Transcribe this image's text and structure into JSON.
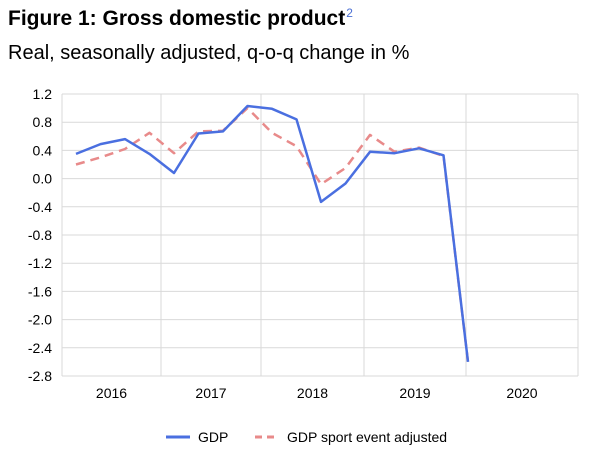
{
  "figure": {
    "title": "Figure 1: Gross domestic product",
    "footnote": "2",
    "subtitle": "Real, seasonally adjusted, q-o-q change in %"
  },
  "chart_data": {
    "type": "line",
    "title": "Figure 1: Gross domestic product",
    "subtitle": "Real, seasonally adjusted, q-o-q change in %",
    "xlabel": "",
    "ylabel": "",
    "ylim": [
      -2.8,
      1.2
    ],
    "yticks": [
      1.2,
      0.8,
      0.4,
      0.0,
      -0.4,
      -0.8,
      -1.2,
      -1.6,
      -2.0,
      -2.4,
      -2.8
    ],
    "ytick_labels": [
      "1.2",
      "0.8",
      "0.4",
      "0.0",
      "-0.4",
      "-0.8",
      "-1.2",
      "-1.6",
      "-2.0",
      "-2.4",
      "-2.8"
    ],
    "year_labels": [
      "2016",
      "2017",
      "2018",
      "2019",
      "2020"
    ],
    "quarters": [
      "2016Q1",
      "2016Q2",
      "2016Q3",
      "2016Q4",
      "2017Q1",
      "2017Q2",
      "2017Q3",
      "2017Q4",
      "2018Q1",
      "2018Q2",
      "2018Q3",
      "2018Q4",
      "2019Q1",
      "2019Q2",
      "2019Q3",
      "2019Q4",
      "2020Q1",
      "2020Q2",
      "2020Q3",
      "2020Q4"
    ],
    "legend_position": "bottom",
    "series": [
      {
        "name": "GDP",
        "color": "#4a6fe0",
        "style": "solid",
        "values": [
          0.35,
          0.49,
          0.56,
          0.35,
          0.08,
          0.64,
          0.67,
          1.03,
          0.99,
          0.84,
          -0.33,
          -0.07,
          0.38,
          0.36,
          0.43,
          0.33,
          -2.6
        ]
      },
      {
        "name": "GDP sport event adjusted",
        "color": "#e88a8a",
        "style": "dashed",
        "values": [
          0.2,
          0.3,
          0.42,
          0.65,
          0.36,
          0.67,
          0.68,
          1.0,
          0.65,
          0.46,
          -0.08,
          0.15,
          0.62,
          0.38,
          0.44,
          0.32,
          -2.6
        ]
      }
    ]
  }
}
